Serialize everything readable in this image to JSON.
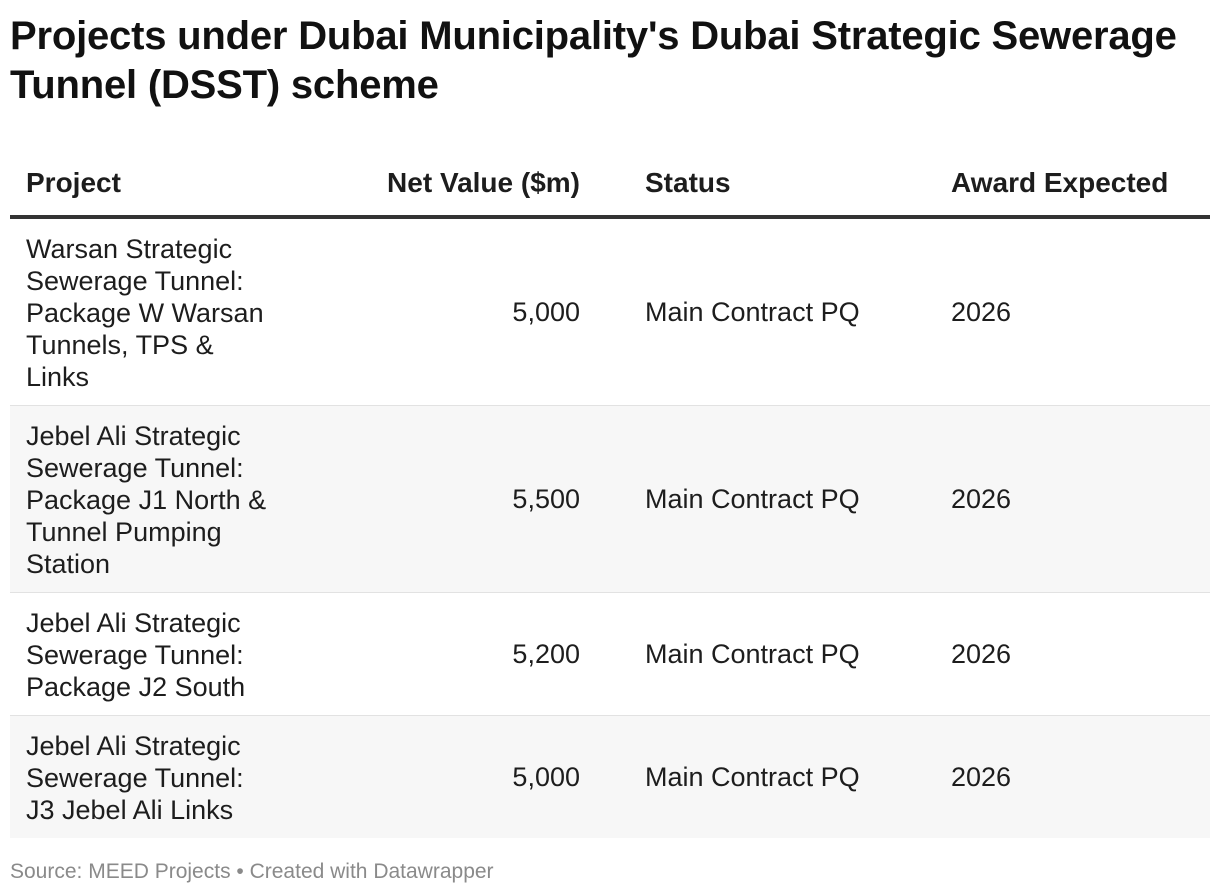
{
  "chart_data": {
    "type": "table",
    "title": "Projects under Dubai Municipality's Dubai Strategic Sewerage Tunnel (DSST) scheme",
    "columns": [
      "Project",
      "Net Value ($m)",
      "Status",
      "Award Expected"
    ],
    "rows": [
      {
        "project": "Warsan Strategic Sewerage Tunnel: Package W Warsan Tunnels, TPS & Links",
        "net_value": "5,000",
        "status": "Main Contract PQ",
        "award_expected": "2026"
      },
      {
        "project": "Jebel Ali Strategic Sewerage Tunnel: Package J1 North & Tunnel Pumping Station",
        "net_value": "5,500",
        "status": "Main Contract PQ",
        "award_expected": "2026"
      },
      {
        "project": "Jebel Ali Strategic Sewerage Tunnel: Package J2 South",
        "net_value": "5,200",
        "status": "Main Contract PQ",
        "award_expected": "2026"
      },
      {
        "project": "Jebel Ali Strategic Sewerage Tunnel: J3 Jebel Ali Links",
        "net_value": "5,000",
        "status": "Main Contract PQ",
        "award_expected": "2026"
      }
    ],
    "source": "Source: MEED Projects • Created with Datawrapper"
  }
}
